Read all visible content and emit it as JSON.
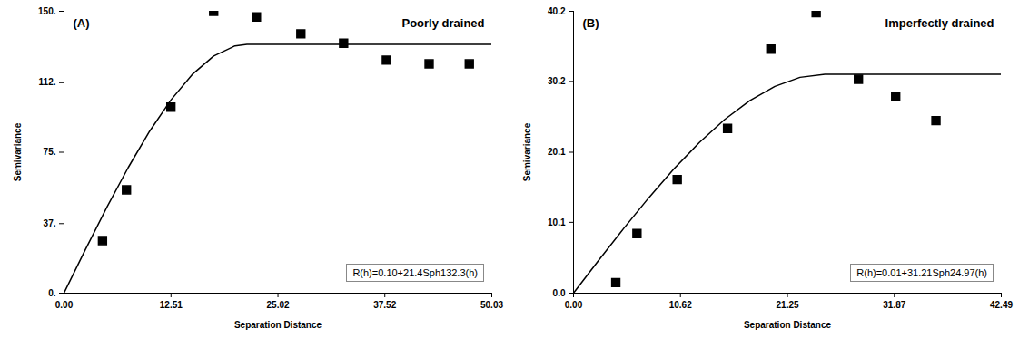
{
  "chart_data": [
    {
      "type": "scatter",
      "panel_label": "(A)",
      "title": "Poorly drained",
      "xlabel": "Separation Distance",
      "ylabel": "Semivariance",
      "annotation": "R(h)=0.10+21.4Sph132.3(h)",
      "xlim": [
        0,
        50.03
      ],
      "ylim": [
        0,
        150
      ],
      "xticks": [
        {
          "value": 0,
          "label": "0.00"
        },
        12.51,
        25.02,
        37.52,
        50.03
      ],
      "yticks": [
        {
          "value": 0,
          "label": "0."
        },
        {
          "value": 37,
          "label": "37."
        },
        {
          "value": 75,
          "label": "75."
        },
        {
          "value": 112,
          "label": "112."
        },
        {
          "value": 150,
          "label": "150."
        }
      ],
      "grid": false,
      "series": [
        {
          "type": "scatter",
          "marker": "square",
          "color": "#000000",
          "x": [
            4.5,
            7.3,
            12.5,
            17.5,
            22.5,
            27.7,
            32.7,
            37.7,
            42.7,
            47.4
          ],
          "values": [
            28,
            55,
            99,
            150,
            147,
            138,
            133,
            124,
            122,
            122
          ]
        },
        {
          "type": "line",
          "line_style": "solid",
          "color": "#000000",
          "x": [
            0,
            2.5,
            5,
            7.5,
            10,
            12.5,
            15,
            17.5,
            20,
            21.4,
            50.03
          ],
          "values": [
            0.1,
            23.2,
            45.6,
            66.8,
            86.1,
            102.8,
            116.4,
            126.2,
            131.6,
            132.4,
            132.4
          ]
        }
      ]
    },
    {
      "type": "scatter",
      "panel_label": "(B)",
      "title": "Imperfectly drained",
      "xlabel": "Separation Distance",
      "ylabel": "Semivariance",
      "annotation": "R(h)=0.01+31.21Sph24.97(h)",
      "xlim": [
        0,
        42.49
      ],
      "ylim": [
        0,
        40.2
      ],
      "xticks": [
        {
          "value": 0,
          "label": "0.00"
        },
        10.62,
        21.25,
        31.87,
        42.49
      ],
      "yticks": [
        {
          "value": 0,
          "label": "0.0"
        },
        10.1,
        20.1,
        30.2,
        40.2
      ],
      "grid": false,
      "series": [
        {
          "type": "scatter",
          "marker": "square",
          "color": "#000000",
          "x": [
            4.2,
            6.3,
            10.3,
            15.3,
            19.6,
            24.1,
            28.3,
            32.0,
            36.0
          ],
          "values": [
            1.5,
            8.5,
            16.2,
            23.5,
            34.8,
            40.0,
            30.5,
            28.0,
            24.6
          ]
        },
        {
          "type": "line",
          "line_style": "solid",
          "color": "#000000",
          "x": [
            0,
            2.5,
            5,
            7.5,
            10,
            12.5,
            15,
            17.5,
            20,
            22.5,
            24.97,
            42.49
          ],
          "values": [
            0.01,
            4.68,
            9.26,
            13.65,
            17.76,
            21.49,
            24.75,
            27.45,
            29.49,
            30.78,
            31.22,
            31.22
          ]
        }
      ]
    }
  ]
}
